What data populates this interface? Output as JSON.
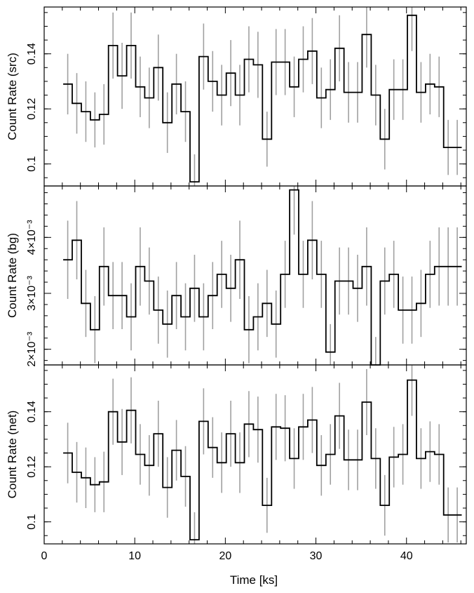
{
  "chart_data": {
    "type": "line",
    "style": "step light curve with error bars",
    "x_values_ks": [
      2.6,
      3.6,
      4.6,
      5.6,
      6.6,
      7.6,
      8.6,
      9.6,
      10.6,
      11.6,
      12.6,
      13.6,
      14.6,
      15.6,
      16.6,
      17.6,
      18.6,
      19.6,
      20.6,
      21.6,
      22.6,
      23.6,
      24.6,
      25.6,
      26.6,
      27.6,
      28.6,
      29.6,
      30.6,
      31.6,
      32.6,
      33.6,
      34.6,
      35.6,
      36.6,
      37.6,
      38.6,
      39.6,
      40.6,
      41.6,
      42.6,
      43.6,
      44.6,
      45.6
    ],
    "bin_width_ks": 1.0,
    "xlabel": "Time [ks]",
    "xlim": [
      0,
      46.6
    ],
    "xticks": [
      "0",
      "10",
      "20",
      "30",
      "40"
    ],
    "xtick_values": [
      0,
      10,
      20,
      30,
      40
    ],
    "panels": [
      {
        "ylabel": "Count Rate (src)",
        "ylim": [
          0.092,
          0.157
        ],
        "ytick_values": [
          0.1,
          0.12,
          0.14
        ],
        "yticks": [
          "0.1",
          "0.12",
          "0.14"
        ],
        "minor_step": 0.005,
        "values": [
          0.129,
          0.122,
          0.119,
          0.116,
          0.118,
          0.143,
          0.132,
          0.143,
          0.128,
          0.124,
          0.135,
          0.115,
          0.129,
          0.119,
          0.0935,
          0.139,
          0.13,
          0.125,
          0.133,
          0.125,
          0.138,
          0.136,
          0.109,
          0.137,
          0.137,
          0.128,
          0.138,
          0.141,
          0.124,
          0.127,
          0.142,
          0.126,
          0.126,
          0.147,
          0.125,
          0.109,
          0.127,
          0.127,
          0.154,
          0.126,
          0.129,
          0.128,
          0.106,
          0.106
        ],
        "errors": [
          0.011,
          0.011,
          0.011,
          0.01,
          0.011,
          0.012,
          0.012,
          0.012,
          0.011,
          0.011,
          0.012,
          0.011,
          0.011,
          0.011,
          0.01,
          0.012,
          0.011,
          0.011,
          0.012,
          0.011,
          0.012,
          0.012,
          0.01,
          0.012,
          0.012,
          0.011,
          0.012,
          0.012,
          0.011,
          0.011,
          0.012,
          0.011,
          0.011,
          0.012,
          0.011,
          0.011,
          0.011,
          0.011,
          0.013,
          0.011,
          0.011,
          0.011,
          0.01,
          0.01
        ]
      },
      {
        "ylabel": "Count Rate (bg)",
        "ylim": [
          0.00172,
          0.00492
        ],
        "ytick_values": [
          0.002,
          0.003,
          0.004
        ],
        "yticks": [
          "2×10⁻³",
          "3×10⁻³",
          "4×10⁻³"
        ],
        "minor_step": 0.0002,
        "values": [
          0.0036,
          0.00395,
          0.00282,
          0.00235,
          0.00348,
          0.00296,
          0.00296,
          0.00258,
          0.00348,
          0.00322,
          0.0027,
          0.00245,
          0.00296,
          0.00258,
          0.00309,
          0.00258,
          0.00296,
          0.00334,
          0.00309,
          0.0036,
          0.00235,
          0.00258,
          0.00282,
          0.00245,
          0.00334,
          0.00485,
          0.00334,
          0.00395,
          0.00334,
          0.00195,
          0.00322,
          0.00322,
          0.00309,
          0.00348,
          0.00172,
          0.00322,
          0.00334,
          0.0027,
          0.0027,
          0.00282,
          0.00334,
          0.00348,
          0.00348,
          0.00348
        ],
        "errors": [
          0.0007,
          0.0007,
          0.0006,
          0.0006,
          0.0007,
          0.0006,
          0.0006,
          0.0006,
          0.0007,
          0.0006,
          0.0006,
          0.0006,
          0.0006,
          0.0006,
          0.0006,
          0.0006,
          0.0006,
          0.0006,
          0.0006,
          0.0007,
          0.0006,
          0.0006,
          0.0006,
          0.0006,
          0.0006,
          0.0008,
          0.0006,
          0.0007,
          0.0006,
          0.0005,
          0.0006,
          0.0006,
          0.0006,
          0.0007,
          0.0005,
          0.0006,
          0.0006,
          0.0006,
          0.0006,
          0.0006,
          0.0006,
          0.0007,
          0.0007,
          0.0007
        ]
      },
      {
        "ylabel": "Count Rate (net)",
        "ylim": [
          0.092,
          0.157
        ],
        "ytick_values": [
          0.1,
          0.12,
          0.14
        ],
        "yticks": [
          "0.1",
          "0.12",
          "0.14"
        ],
        "minor_step": 0.005,
        "values": [
          0.125,
          0.118,
          0.116,
          0.1135,
          0.1145,
          0.14,
          0.129,
          0.1405,
          0.1245,
          0.1205,
          0.132,
          0.1125,
          0.126,
          0.1165,
          0.0935,
          0.1365,
          0.127,
          0.1215,
          0.132,
          0.1215,
          0.1355,
          0.1335,
          0.106,
          0.1345,
          0.134,
          0.123,
          0.1345,
          0.137,
          0.1205,
          0.1245,
          0.1385,
          0.1225,
          0.1225,
          0.1435,
          0.123,
          0.106,
          0.1235,
          0.1245,
          0.1515,
          0.123,
          0.1255,
          0.1245,
          0.1025,
          0.1025
        ],
        "errors": [
          0.011,
          0.011,
          0.011,
          0.01,
          0.011,
          0.012,
          0.012,
          0.012,
          0.011,
          0.011,
          0.012,
          0.011,
          0.011,
          0.011,
          0.01,
          0.012,
          0.011,
          0.011,
          0.012,
          0.011,
          0.012,
          0.012,
          0.01,
          0.012,
          0.012,
          0.011,
          0.012,
          0.012,
          0.011,
          0.011,
          0.012,
          0.011,
          0.011,
          0.012,
          0.011,
          0.011,
          0.011,
          0.011,
          0.013,
          0.011,
          0.011,
          0.011,
          0.01,
          0.01
        ]
      }
    ],
    "colors": {
      "step_line": "#000000",
      "error_bar": "#a0a0a0",
      "frame": "#000000"
    },
    "grid": false,
    "legend": "none"
  }
}
